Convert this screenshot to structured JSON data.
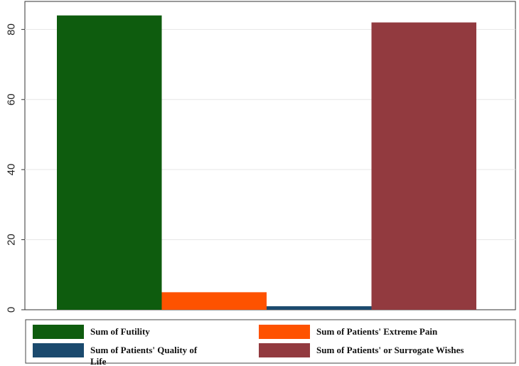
{
  "chart_data": {
    "type": "bar",
    "categories": [
      "Sum of Futility",
      "Sum of Patients' Extreme Pain",
      "Sum of Patients' Quality of Life",
      "Sum of Patients' or Surrogate Wishes"
    ],
    "series": [
      {
        "name": "Sum of Futility",
        "value": 84,
        "color": "#0e5c0e"
      },
      {
        "name": "Sum of Patients' Extreme Pain",
        "value": 5,
        "color": "#fe5200"
      },
      {
        "name": "Sum of Patients' Quality of Life",
        "value": 1,
        "color": "#1b4a6e"
      },
      {
        "name": "Sum of Patients' or Surrogate Wishes",
        "value": 82,
        "color": "#923a3f"
      }
    ],
    "legend": {
      "placement": "bottom",
      "entries": [
        {
          "label": "Sum of Futility",
          "color": "#0e5c0e"
        },
        {
          "label": "Sum of Patients' Extreme Pain",
          "color": "#fe5200"
        },
        {
          "label_lines": [
            "Sum of Patients' Quality of",
            "Life"
          ],
          "color": "#1b4a6e"
        },
        {
          "label": "Sum of Patients' or Surrogate Wishes",
          "color": "#923a3f"
        }
      ]
    },
    "yticks": [
      0,
      20,
      40,
      60,
      80
    ],
    "ytick_labels": [
      "0",
      "20",
      "40",
      "60",
      "80"
    ],
    "ylim": [
      0,
      88
    ],
    "grid": true,
    "title": "",
    "xlabel": "",
    "ylabel": ""
  }
}
